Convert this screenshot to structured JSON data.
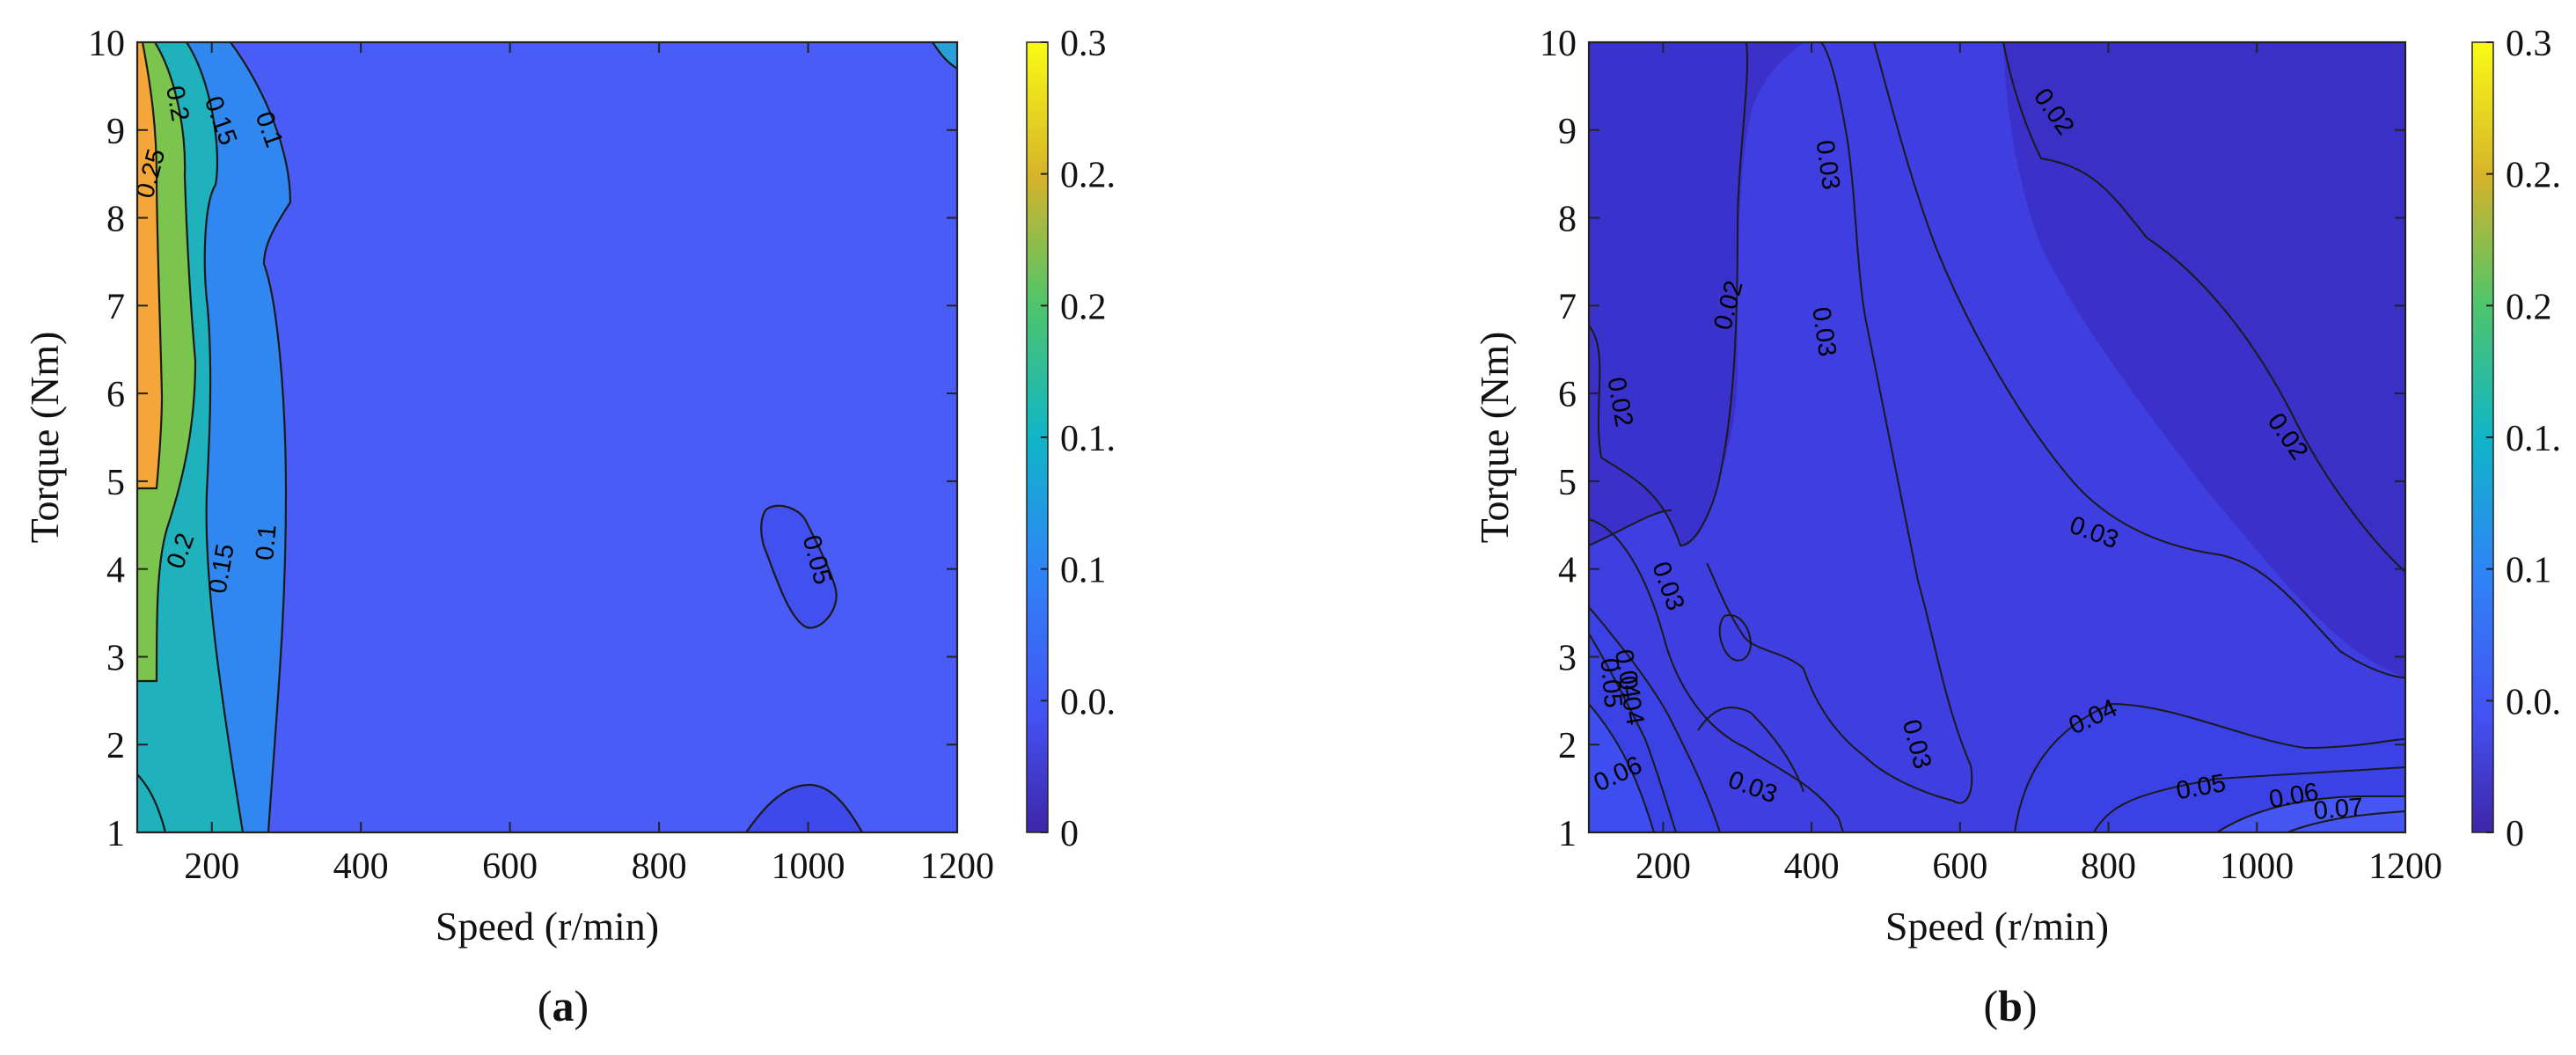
{
  "chart_data": [
    {
      "type": "contour",
      "panel_label": "a",
      "xlabel": "Speed (r/min)",
      "ylabel": "Torque (Nm)",
      "xlim": [
        100,
        1200
      ],
      "ylim": [
        1,
        10
      ],
      "xticks": [
        200,
        400,
        600,
        800,
        1000,
        1200
      ],
      "yticks": [
        1,
        2,
        3,
        4,
        5,
        6,
        7,
        8,
        9,
        10
      ],
      "colorbar": {
        "range": [
          0,
          0.3
        ],
        "tick_labels": [
          "0",
          "0.0.",
          "0.1",
          "0.1.",
          "0.2",
          "0.2.",
          "0.3"
        ]
      },
      "contour_labels": [
        {
          "text": "0.25",
          "x": 120,
          "y": 8.5,
          "rotation": -75
        },
        {
          "text": "0.2",
          "x": 152,
          "y": 9.3,
          "rotation": 80
        },
        {
          "text": "0.15",
          "x": 210,
          "y": 9.1,
          "rotation": 70
        },
        {
          "text": "0.1",
          "x": 275,
          "y": 9.0,
          "rotation": 70
        },
        {
          "text": "0.2",
          "x": 160,
          "y": 4.2,
          "rotation": -70
        },
        {
          "text": "0.15",
          "x": 215,
          "y": 4.0,
          "rotation": -80
        },
        {
          "text": "0.1",
          "x": 275,
          "y": 4.3,
          "rotation": -85
        },
        {
          "text": "0.05",
          "x": 1010,
          "y": 4.1,
          "rotation": 75
        }
      ]
    },
    {
      "type": "contour",
      "panel_label": "b",
      "xlabel": "Speed (r/min)",
      "ylabel": "Torque (Nm)",
      "xlim": [
        100,
        1200
      ],
      "ylim": [
        1,
        10
      ],
      "xticks": [
        200,
        400,
        600,
        800,
        1000,
        1200
      ],
      "yticks": [
        1,
        2,
        3,
        4,
        5,
        6,
        7,
        8,
        9,
        10
      ],
      "colorbar": {
        "range": [
          0,
          0.3
        ],
        "tick_labels": [
          "0",
          "0.0.",
          "0.1",
          "0.1.",
          "0.2",
          "0.2.",
          "0.3"
        ]
      },
      "contour_labels": [
        {
          "text": "0.02",
          "x": 725,
          "y": 9.2,
          "rotation": 55
        },
        {
          "text": "0.03",
          "x": 420,
          "y": 8.6,
          "rotation": 82
        },
        {
          "text": "0.02",
          "x": 290,
          "y": 7.0,
          "rotation": -75
        },
        {
          "text": "0.03",
          "x": 415,
          "y": 6.7,
          "rotation": 82
        },
        {
          "text": "0.02",
          "x": 1040,
          "y": 5.5,
          "rotation": 55
        },
        {
          "text": "0.02",
          "x": 140,
          "y": 5.9,
          "rotation": 80
        },
        {
          "text": "0.03",
          "x": 780,
          "y": 4.4,
          "rotation": 20
        },
        {
          "text": "0.03",
          "x": 205,
          "y": 3.8,
          "rotation": 70
        },
        {
          "text": "0.04",
          "x": 150,
          "y": 2.8,
          "rotation": 80
        },
        {
          "text": "0.05",
          "x": 128,
          "y": 2.7,
          "rotation": 85
        },
        {
          "text": "0.04",
          "x": 155,
          "y": 2.5,
          "rotation": 80
        },
        {
          "text": "0.03",
          "x": 540,
          "y": 2.0,
          "rotation": 75
        },
        {
          "text": "0.04",
          "x": 780,
          "y": 2.3,
          "rotation": -25
        },
        {
          "text": "0.06",
          "x": 140,
          "y": 1.65,
          "rotation": -25
        },
        {
          "text": "0.03",
          "x": 320,
          "y": 1.5,
          "rotation": 20
        },
        {
          "text": "0.05",
          "x": 925,
          "y": 1.5,
          "rotation": -10
        },
        {
          "text": "0.06",
          "x": 1050,
          "y": 1.4,
          "rotation": -10
        },
        {
          "text": "0.07",
          "x": 1110,
          "y": 1.25,
          "rotation": -5
        }
      ]
    }
  ],
  "colors": {
    "a_background": "#4a5cf6",
    "b_background": "#3b30c9",
    "b_mid_band": "#3f3ee0",
    "b_low_band": "#3a42e6",
    "cyan_band": "#1fb6b7",
    "teal_band": "#2a9fd6",
    "green_band": "#7ac34f",
    "orange_band": "#f4a637"
  }
}
